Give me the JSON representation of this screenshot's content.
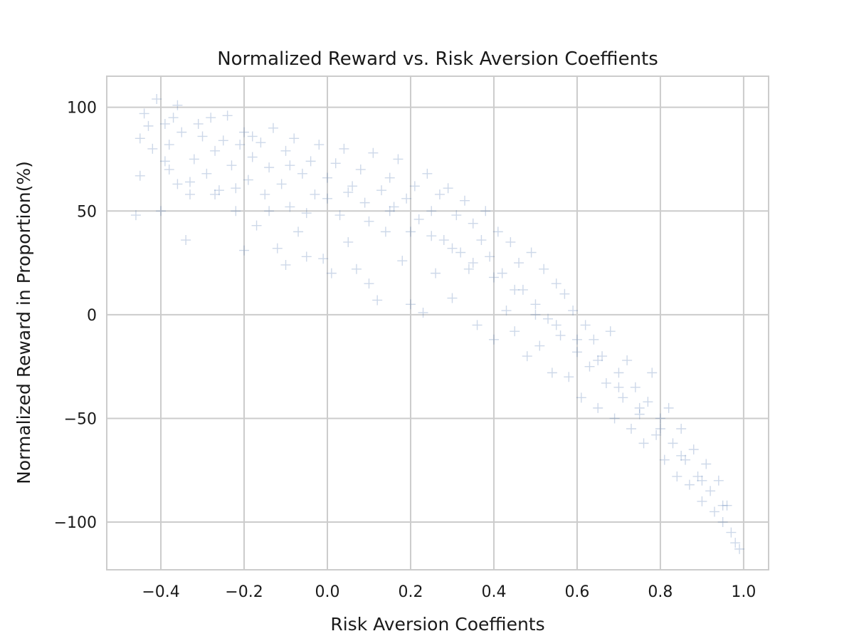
{
  "chart_data": {
    "type": "scatter",
    "title": "Normalized Reward vs. Risk Aversion Coeffients",
    "xlabel": "Risk Aversion Coeffients",
    "ylabel": "Normalized Reward in Proportion(%)",
    "xlim": [
      -0.53,
      1.06
    ],
    "ylim": [
      -123,
      115
    ],
    "xticks": [
      -0.4,
      -0.2,
      0.0,
      0.2,
      0.4,
      0.6,
      0.8,
      1.0
    ],
    "xtick_labels": [
      "−0.4",
      "−0.2",
      "0.0",
      "0.2",
      "0.4",
      "0.6",
      "0.8",
      "1.0"
    ],
    "yticks": [
      -100,
      -50,
      0,
      50,
      100
    ],
    "ytick_labels": [
      "−100",
      "−50",
      "0",
      "50",
      "100"
    ],
    "grid": true,
    "marker": "plus",
    "color": "#4c72b0",
    "points": [
      [
        -0.46,
        48
      ],
      [
        -0.45,
        67
      ],
      [
        -0.45,
        85
      ],
      [
        -0.44,
        97
      ],
      [
        -0.43,
        91
      ],
      [
        -0.42,
        80
      ],
      [
        -0.41,
        104
      ],
      [
        -0.4,
        50
      ],
      [
        -0.39,
        92
      ],
      [
        -0.39,
        74
      ],
      [
        -0.38,
        82
      ],
      [
        -0.37,
        95
      ],
      [
        -0.36,
        101
      ],
      [
        -0.36,
        63
      ],
      [
        -0.35,
        88
      ],
      [
        -0.34,
        36
      ],
      [
        -0.33,
        58
      ],
      [
        -0.32,
        75
      ],
      [
        -0.31,
        92
      ],
      [
        -0.3,
        86
      ],
      [
        -0.29,
        68
      ],
      [
        -0.28,
        95
      ],
      [
        -0.27,
        79
      ],
      [
        -0.26,
        60
      ],
      [
        -0.25,
        84
      ],
      [
        -0.24,
        96
      ],
      [
        -0.23,
        72
      ],
      [
        -0.22,
        50
      ],
      [
        -0.21,
        82
      ],
      [
        -0.2,
        31
      ],
      [
        -0.2,
        88
      ],
      [
        -0.19,
        65
      ],
      [
        -0.18,
        76
      ],
      [
        -0.17,
        43
      ],
      [
        -0.16,
        83
      ],
      [
        -0.15,
        58
      ],
      [
        -0.14,
        71
      ],
      [
        -0.13,
        90
      ],
      [
        -0.12,
        32
      ],
      [
        -0.11,
        63
      ],
      [
        -0.1,
        24
      ],
      [
        -0.1,
        79
      ],
      [
        -0.09,
        52
      ],
      [
        -0.08,
        85
      ],
      [
        -0.07,
        40
      ],
      [
        -0.06,
        68
      ],
      [
        -0.05,
        28
      ],
      [
        -0.04,
        74
      ],
      [
        -0.03,
        58
      ],
      [
        -0.02,
        82
      ],
      [
        -0.01,
        27
      ],
      [
        0.0,
        66
      ],
      [
        0.01,
        20
      ],
      [
        0.02,
        73
      ],
      [
        0.03,
        48
      ],
      [
        0.04,
        80
      ],
      [
        0.05,
        35
      ],
      [
        0.06,
        62
      ],
      [
        0.07,
        22
      ],
      [
        0.08,
        70
      ],
      [
        0.09,
        54
      ],
      [
        0.1,
        15
      ],
      [
        0.11,
        78
      ],
      [
        0.12,
        7
      ],
      [
        0.13,
        60
      ],
      [
        0.14,
        40
      ],
      [
        0.15,
        66
      ],
      [
        0.16,
        52
      ],
      [
        0.17,
        75
      ],
      [
        0.18,
        26
      ],
      [
        0.19,
        56
      ],
      [
        0.2,
        5
      ],
      [
        0.21,
        62
      ],
      [
        0.22,
        46
      ],
      [
        0.23,
        1
      ],
      [
        0.24,
        68
      ],
      [
        0.25,
        50
      ],
      [
        0.26,
        20
      ],
      [
        0.27,
        58
      ],
      [
        0.28,
        36
      ],
      [
        0.29,
        61
      ],
      [
        0.3,
        8
      ],
      [
        0.31,
        48
      ],
      [
        0.32,
        30
      ],
      [
        0.33,
        55
      ],
      [
        0.34,
        22
      ],
      [
        0.35,
        44
      ],
      [
        0.36,
        -5
      ],
      [
        0.37,
        36
      ],
      [
        0.38,
        50
      ],
      [
        0.39,
        28
      ],
      [
        0.4,
        -12
      ],
      [
        0.41,
        40
      ],
      [
        0.42,
        20
      ],
      [
        0.43,
        2
      ],
      [
        0.44,
        35
      ],
      [
        0.45,
        -8
      ],
      [
        0.46,
        25
      ],
      [
        0.47,
        12
      ],
      [
        0.48,
        -20
      ],
      [
        0.49,
        30
      ],
      [
        0.5,
        5
      ],
      [
        0.51,
        -15
      ],
      [
        0.52,
        22
      ],
      [
        0.53,
        -2
      ],
      [
        0.54,
        -28
      ],
      [
        0.55,
        15
      ],
      [
        0.56,
        -10
      ],
      [
        0.57,
        10
      ],
      [
        0.58,
        -30
      ],
      [
        0.59,
        2
      ],
      [
        0.6,
        -18
      ],
      [
        0.61,
        -40
      ],
      [
        0.62,
        -5
      ],
      [
        0.63,
        -25
      ],
      [
        0.64,
        -12
      ],
      [
        0.65,
        -45
      ],
      [
        0.66,
        -20
      ],
      [
        0.67,
        -33
      ],
      [
        0.68,
        -8
      ],
      [
        0.69,
        -50
      ],
      [
        0.7,
        -28
      ],
      [
        0.71,
        -40
      ],
      [
        0.72,
        -22
      ],
      [
        0.73,
        -55
      ],
      [
        0.74,
        -35
      ],
      [
        0.75,
        -48
      ],
      [
        0.76,
        -62
      ],
      [
        0.77,
        -42
      ],
      [
        0.78,
        -28
      ],
      [
        0.79,
        -58
      ],
      [
        0.8,
        -50
      ],
      [
        0.81,
        -70
      ],
      [
        0.82,
        -45
      ],
      [
        0.83,
        -62
      ],
      [
        0.84,
        -78
      ],
      [
        0.85,
        -55
      ],
      [
        0.86,
        -70
      ],
      [
        0.87,
        -82
      ],
      [
        0.88,
        -65
      ],
      [
        0.89,
        -78
      ],
      [
        0.9,
        -90
      ],
      [
        0.91,
        -72
      ],
      [
        0.92,
        -85
      ],
      [
        0.93,
        -95
      ],
      [
        0.94,
        -80
      ],
      [
        0.95,
        -100
      ],
      [
        0.96,
        -92
      ],
      [
        0.97,
        -105
      ],
      [
        0.98,
        -110
      ],
      [
        0.99,
        -113
      ],
      [
        -0.38,
        70
      ],
      [
        -0.33,
        64
      ],
      [
        -0.27,
        58
      ],
      [
        -0.22,
        61
      ],
      [
        -0.18,
        86
      ],
      [
        -0.14,
        50
      ],
      [
        -0.09,
        72
      ],
      [
        -0.05,
        49
      ],
      [
        0.0,
        56
      ],
      [
        0.05,
        59
      ],
      [
        0.1,
        45
      ],
      [
        0.15,
        50
      ],
      [
        0.2,
        40
      ],
      [
        0.25,
        38
      ],
      [
        0.3,
        32
      ],
      [
        0.35,
        25
      ],
      [
        0.4,
        18
      ],
      [
        0.45,
        12
      ],
      [
        0.5,
        0
      ],
      [
        0.55,
        -5
      ],
      [
        0.6,
        -12
      ],
      [
        0.65,
        -22
      ],
      [
        0.7,
        -35
      ],
      [
        0.75,
        -45
      ],
      [
        0.8,
        -55
      ],
      [
        0.85,
        -68
      ],
      [
        0.9,
        -80
      ],
      [
        0.95,
        -92
      ]
    ]
  }
}
